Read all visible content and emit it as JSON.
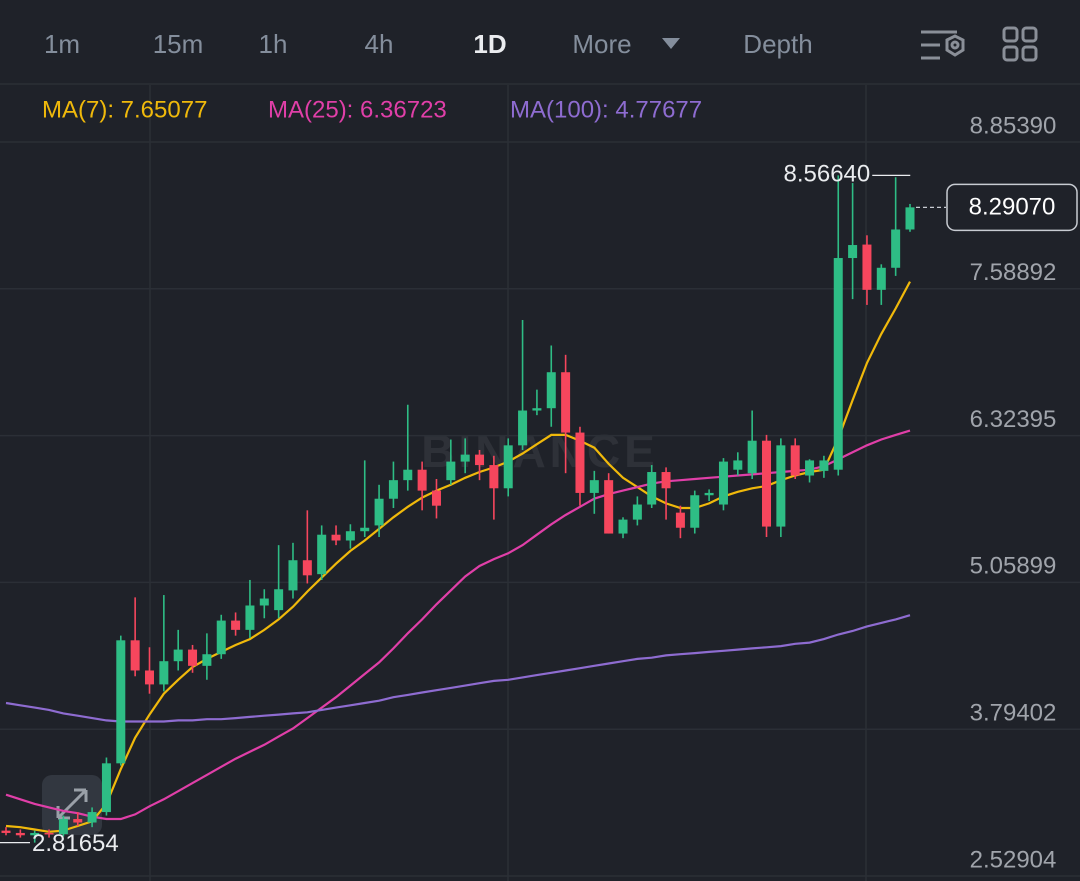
{
  "toolbar": {
    "tabs": [
      "1m",
      "15m",
      "1h",
      "4h",
      "1D",
      "More",
      "Depth"
    ],
    "active": "1D"
  },
  "chart_data": {
    "type": "candlestick",
    "watermark": "BINANCE",
    "categories": [
      null,
      null,
      null,
      null,
      null,
      null,
      null,
      null,
      null,
      null,
      null,
      null,
      null,
      null,
      null,
      null,
      null,
      null,
      null,
      null,
      null,
      null,
      null,
      null,
      null,
      null,
      null,
      null,
      null,
      null,
      null,
      null,
      null,
      null,
      null,
      null,
      null,
      null,
      null,
      null,
      null,
      null,
      null,
      null,
      null,
      null,
      null,
      null,
      null,
      null,
      null,
      null,
      null,
      null,
      null,
      null,
      null,
      null,
      null,
      null,
      null,
      null,
      null,
      null
    ],
    "open": [
      2.92,
      2.9,
      2.88,
      2.9,
      2.89,
      3.02,
      2.99,
      3.08,
      3.5,
      4.56,
      4.3,
      4.18,
      4.38,
      4.48,
      4.34,
      4.44,
      4.73,
      4.65,
      4.86,
      4.82,
      4.99,
      5.25,
      5.13,
      5.47,
      5.42,
      5.5,
      5.55,
      5.78,
      5.94,
      6.03,
      5.85,
      5.94,
      6.1,
      6.16,
      6.07,
      5.87,
      6.24,
      6.54,
      6.56,
      6.87,
      6.35,
      5.83,
      5.94,
      5.48,
      5.6,
      5.73,
      6.01,
      5.66,
      5.53,
      5.81,
      5.73,
      6.03,
      6.0,
      6.28,
      5.54,
      6.24,
      5.98,
      6.02,
      6.03,
      7.854,
      7.97,
      7.58,
      7.77,
      8.1
    ],
    "high": [
      2.95,
      2.93,
      2.92,
      2.93,
      3.05,
      3.08,
      3.12,
      3.55,
      4.6,
      4.93,
      4.5,
      4.95,
      4.65,
      4.52,
      4.62,
      4.78,
      4.8,
      5.08,
      5.0,
      5.38,
      5.4,
      5.68,
      5.55,
      5.55,
      5.56,
      6.11,
      5.9,
      6.1,
      6.59,
      6.1,
      5.95,
      6.29,
      6.3,
      6.2,
      6.15,
      6.3,
      7.32,
      6.72,
      7.1,
      7.02,
      6.4,
      6.02,
      6.0,
      5.62,
      5.8,
      6.07,
      6.05,
      5.72,
      5.85,
      5.86,
      6.13,
      6.18,
      6.54,
      6.33,
      6.3,
      6.3,
      6.12,
      6.15,
      8.5664,
      8.5,
      8.05,
      7.8,
      8.55,
      8.32
    ],
    "low": [
      2.88,
      2.86,
      2.81654,
      2.86,
      2.87,
      2.96,
      2.95,
      3.05,
      3.48,
      4.25,
      4.1,
      4.12,
      4.3,
      4.28,
      4.22,
      4.4,
      4.6,
      4.58,
      4.75,
      4.75,
      4.92,
      5.05,
      5.08,
      5.38,
      5.35,
      5.45,
      5.45,
      5.7,
      5.85,
      5.68,
      5.61,
      5.9,
      6.0,
      5.94,
      5.6,
      5.8,
      6.2,
      6.5,
      6.4,
      6.0,
      5.72,
      5.65,
      5.48,
      5.44,
      5.55,
      5.7,
      5.6,
      5.44,
      5.48,
      5.76,
      5.68,
      5.98,
      5.95,
      5.45,
      5.45,
      5.95,
      5.92,
      5.96,
      5.98,
      7.5,
      7.45,
      7.45,
      7.7,
      8.08
    ],
    "close": [
      2.9,
      2.88,
      2.9,
      2.89,
      3.02,
      2.99,
      3.08,
      3.5,
      4.56,
      4.3,
      4.18,
      4.38,
      4.48,
      4.34,
      4.44,
      4.73,
      4.65,
      4.86,
      4.92,
      5.0,
      5.25,
      5.12,
      5.47,
      5.42,
      5.5,
      5.53,
      5.78,
      5.94,
      6.03,
      5.85,
      5.72,
      6.1,
      6.16,
      6.07,
      5.87,
      6.24,
      6.54,
      6.56,
      6.87,
      6.35,
      5.83,
      5.94,
      5.48,
      5.6,
      5.73,
      6.01,
      5.87,
      5.53,
      5.81,
      5.83,
      6.1,
      6.11,
      6.28,
      5.54,
      6.24,
      5.98,
      6.11,
      6.11,
      7.854,
      7.966,
      7.58,
      7.77,
      8.1,
      8.2907
    ],
    "up_color": "#2ebd85",
    "down_color": "#f6465d",
    "series": [
      {
        "name": "MA(7): 7.65077",
        "color": "#f0b90b",
        "values": [
          2.96,
          2.95,
          2.93,
          2.91,
          2.92,
          2.96,
          3.0,
          3.15,
          3.45,
          3.72,
          3.92,
          4.1,
          4.22,
          4.33,
          4.4,
          4.46,
          4.52,
          4.57,
          4.65,
          4.74,
          4.85,
          4.98,
          5.1,
          5.22,
          5.33,
          5.42,
          5.52,
          5.62,
          5.71,
          5.79,
          5.85,
          5.9,
          5.96,
          6.01,
          6.05,
          6.1,
          6.17,
          6.25,
          6.33,
          6.33,
          6.28,
          6.22,
          6.08,
          5.96,
          5.88,
          5.8,
          5.74,
          5.7,
          5.7,
          5.74,
          5.8,
          5.84,
          5.87,
          5.89,
          5.94,
          5.98,
          6.01,
          6.03,
          6.3,
          6.63,
          6.95,
          7.2,
          7.42,
          7.65077
        ]
      },
      {
        "name": "MA(25): 6.36723",
        "color": "#e03fa8",
        "values": [
          3.23,
          3.19,
          3.15,
          3.12,
          3.09,
          3.07,
          3.04,
          3.02,
          3.02,
          3.06,
          3.13,
          3.19,
          3.26,
          3.33,
          3.4,
          3.47,
          3.54,
          3.6,
          3.66,
          3.73,
          3.8,
          3.89,
          3.98,
          4.07,
          4.17,
          4.27,
          4.37,
          4.49,
          4.62,
          4.74,
          4.87,
          4.99,
          5.11,
          5.2,
          5.26,
          5.31,
          5.38,
          5.47,
          5.56,
          5.64,
          5.71,
          5.78,
          5.82,
          5.85,
          5.88,
          5.91,
          5.93,
          5.94,
          5.95,
          5.96,
          5.97,
          5.98,
          5.99,
          6.0,
          6.01,
          6.02,
          6.03,
          6.06,
          6.12,
          6.18,
          6.24,
          6.29,
          6.33,
          6.36723
        ]
      },
      {
        "name": "MA(100): 4.77677",
        "color": "#8e6cd1",
        "values": [
          4.02,
          4.0,
          3.98,
          3.96,
          3.93,
          3.91,
          3.89,
          3.87,
          3.86,
          3.86,
          3.86,
          3.86,
          3.87,
          3.87,
          3.88,
          3.88,
          3.89,
          3.9,
          3.91,
          3.92,
          3.93,
          3.94,
          3.96,
          3.98,
          4.0,
          4.02,
          4.04,
          4.07,
          4.09,
          4.11,
          4.13,
          4.15,
          4.17,
          4.19,
          4.21,
          4.22,
          4.24,
          4.26,
          4.28,
          4.3,
          4.32,
          4.34,
          4.36,
          4.38,
          4.4,
          4.41,
          4.43,
          4.44,
          4.45,
          4.46,
          4.47,
          4.48,
          4.49,
          4.5,
          4.51,
          4.53,
          4.54,
          4.57,
          4.61,
          4.64,
          4.68,
          4.71,
          4.74,
          4.77677
        ]
      }
    ],
    "annotations": {
      "high": "8.56640",
      "low": "2.81654",
      "last": "8.29070"
    },
    "ylim": [
      2.486,
      9.345
    ],
    "yticks": [
      2.52904,
      3.79402,
      5.05899,
      6.32395,
      7.58892,
      {
        "value": 8.8539,
        "label": "8.85390"
      }
    ],
    "grid": true
  }
}
